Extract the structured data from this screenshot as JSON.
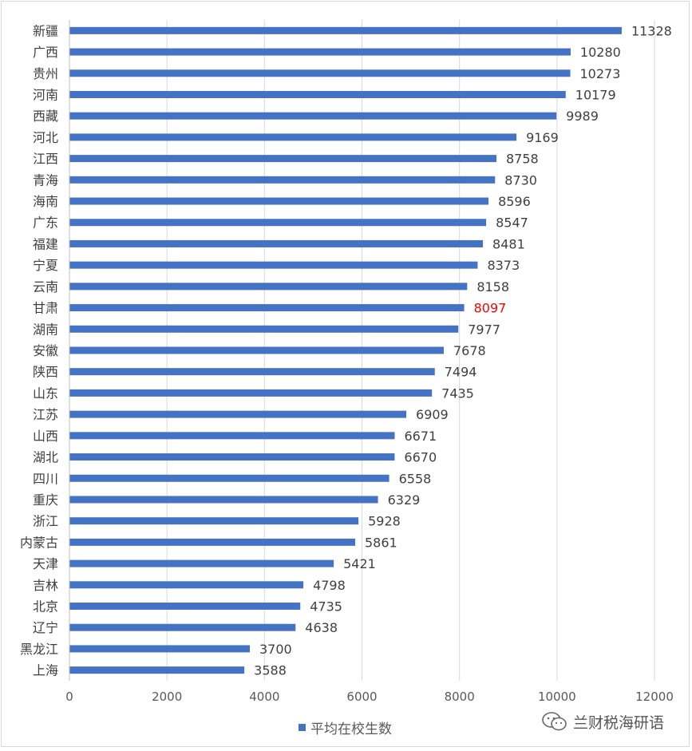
{
  "chart_data": {
    "type": "bar",
    "orientation": "horizontal",
    "categories": [
      "新疆",
      "广西",
      "贵州",
      "河南",
      "西藏",
      "河北",
      "江西",
      "青海",
      "海南",
      "广东",
      "福建",
      "宁夏",
      "云南",
      "甘肃",
      "湖南",
      "安徽",
      "陕西",
      "山东",
      "江苏",
      "山西",
      "湖北",
      "四川",
      "重庆",
      "浙江",
      "内蒙古",
      "天津",
      "吉林",
      "北京",
      "辽宁",
      "黑龙江",
      "上海"
    ],
    "series": [
      {
        "name": "平均在校生数",
        "color": "#4472c4",
        "values": [
          11328,
          10280,
          10273,
          10179,
          9989,
          9169,
          8758,
          8730,
          8596,
          8547,
          8481,
          8373,
          8158,
          8097,
          7977,
          7678,
          7494,
          7435,
          6909,
          6671,
          6670,
          6558,
          6329,
          5928,
          5861,
          5421,
          4798,
          4735,
          4638,
          3700,
          3588
        ]
      }
    ],
    "highlight": {
      "category": "甘肃",
      "label_color": "#ff0000"
    },
    "xlim": [
      0,
      12000
    ],
    "xticks": [
      "0",
      "2000",
      "4000",
      "6000",
      "8000",
      "10000",
      "12000"
    ],
    "grid": "vertical",
    "legend_position": "bottom",
    "data_labels": true
  },
  "watermark": {
    "text": "兰财税海研语",
    "icon": "wechat-icon"
  }
}
